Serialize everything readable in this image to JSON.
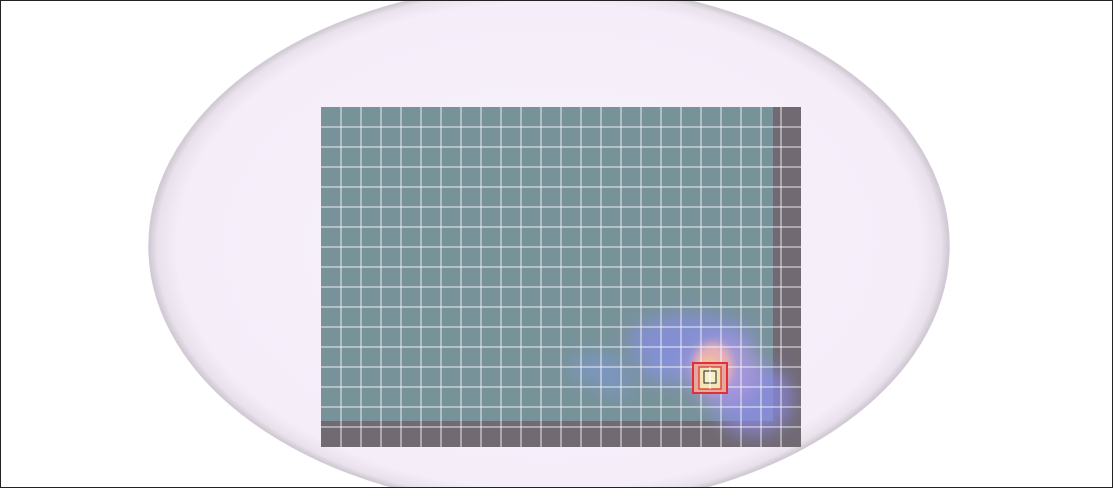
{
  "colors": {
    "background": "#ffffff",
    "frame_border": "#222222",
    "oval_fill": "#f6effa",
    "oval_edge": "#d7d0d9",
    "plate_fill": "#78929a",
    "plate_edge_band": "#716a72",
    "grid_line": "#ffffff",
    "heat_cool": "#7f8cf0",
    "heat_mid": "#b69ae6",
    "heat_warm": "#f1b8a8",
    "heat_hot": "#f4d08a",
    "target_red": "#e0303a",
    "target_cream": "#f2e6b8"
  },
  "grid": {
    "columns": 24,
    "rows": 17
  },
  "hotspot": {
    "column": 19,
    "row": 13,
    "intensity": 1.0
  }
}
